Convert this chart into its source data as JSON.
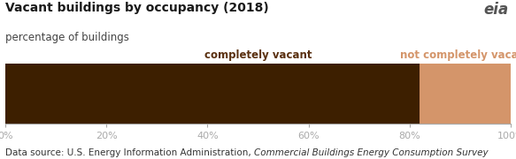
{
  "title": "Vacant buildings by occupancy (2018)",
  "subtitle": "percentage of buildings",
  "completely_vacant_pct": 82,
  "not_completely_vacant_pct": 18,
  "color_completely_vacant": "#3d1f00",
  "color_not_completely_vacant": "#d4956a",
  "label_completely_vacant": "completely vacant",
  "label_not_completely_vacant": "not completely vacant",
  "label_cv_color": "#5a3010",
  "label_ncv_color": "#d4956a",
  "x_ticks": [
    0,
    20,
    40,
    60,
    80,
    100
  ],
  "x_tick_labels": [
    "0%",
    "20%",
    "40%",
    "60%",
    "80%",
    "100%"
  ],
  "datasource_plain": "Data source: U.S. Energy Information Administration, ",
  "datasource_italic": "Commercial Buildings Energy Consumption Survey",
  "background_color": "#ffffff",
  "figsize": [
    5.83,
    1.8
  ],
  "dpi": 100
}
